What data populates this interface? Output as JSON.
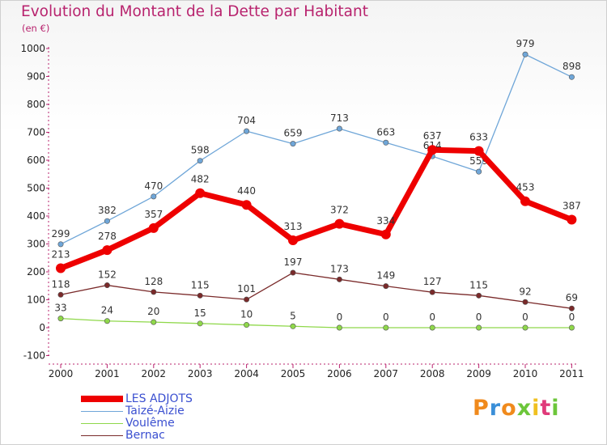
{
  "title": "Evolution du Montant de la Dette par Habitant",
  "unit": "(en €)",
  "logo": "Proxiti",
  "chart_data": {
    "type": "line",
    "x": [
      "2000",
      "2001",
      "2002",
      "2003",
      "2004",
      "2005",
      "2006",
      "2007",
      "2008",
      "2009",
      "2010",
      "2011"
    ],
    "ylim": [
      -100,
      1000
    ],
    "yticks": [
      -100,
      0,
      100,
      200,
      300,
      400,
      500,
      600,
      700,
      800,
      900,
      1000
    ],
    "grid": false,
    "legend_position": "bottom-left",
    "series": [
      {
        "name": "Taizé-Aizie",
        "color": "#6fa6d8",
        "values": [
          299,
          382,
          470,
          598,
          704,
          659,
          713,
          663,
          614,
          559,
          979,
          898
        ]
      },
      {
        "name": "Voulême",
        "color": "#8fd84a",
        "values": [
          33,
          24,
          20,
          15,
          10,
          5,
          0,
          0,
          0,
          0,
          0,
          0
        ]
      },
      {
        "name": "Bernac",
        "color": "#7a2a2a",
        "values": [
          118,
          152,
          128,
          115,
          101,
          197,
          173,
          149,
          127,
          115,
          92,
          69
        ]
      },
      {
        "name": "LES ADJOTS",
        "color": "#ee0000",
        "values": [
          213,
          278,
          357,
          482,
          440,
          313,
          372,
          334,
          637,
          633,
          453,
          387
        ]
      }
    ]
  },
  "legend": [
    {
      "name": "LES ADJOTS",
      "color": "#ee0000"
    },
    {
      "name": "Taizé-Aizie",
      "color": "#6fa6d8"
    },
    {
      "name": "Voulême",
      "color": "#8fd84a"
    },
    {
      "name": "Bernac",
      "color": "#7a2a2a"
    }
  ]
}
